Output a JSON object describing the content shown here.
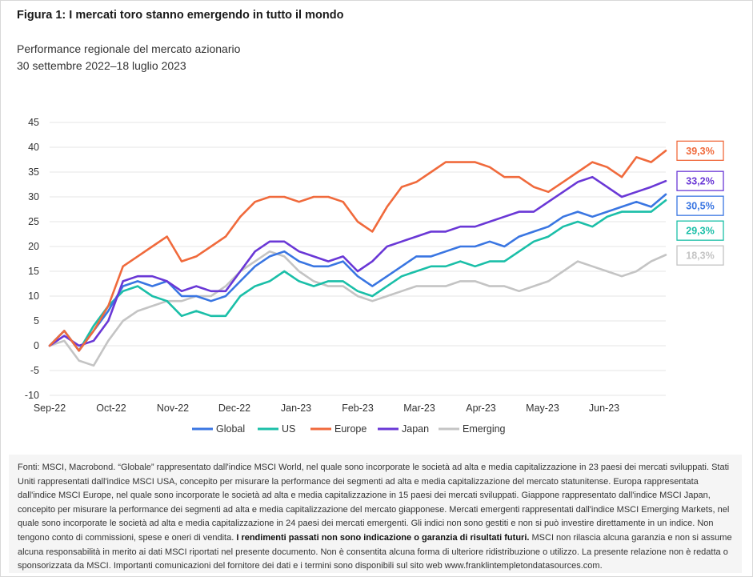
{
  "figure": {
    "title": "Figura 1: I mercati toro stanno emergendo in tutto il mondo",
    "subtitle_line1": "Performance regionale del mercato azionario",
    "subtitle_line2": "30 settembre 2022–18 luglio 2023"
  },
  "chart_data": {
    "type": "line",
    "title": "",
    "xlabel": "",
    "ylabel": "",
    "ylim": [
      -10,
      45
    ],
    "yticks": [
      45,
      40,
      35,
      30,
      25,
      20,
      15,
      10,
      5,
      0,
      -5,
      -10
    ],
    "x_tick_labels": [
      "Sep-22",
      "Oct-22",
      "Nov-22",
      "Dec-22",
      "Jan-23",
      "Feb-23",
      "Mar-23",
      "Apr-23",
      "May-23",
      "Jun-23"
    ],
    "grid": "horizontal",
    "legend_position": "bottom",
    "x": [
      "2022-09-30",
      "2022-10-06",
      "2022-10-13",
      "2022-10-20",
      "2022-10-27",
      "2022-11-03",
      "2022-11-10",
      "2022-11-17",
      "2022-11-24",
      "2022-12-01",
      "2022-12-08",
      "2022-12-15",
      "2022-12-22",
      "2022-12-29",
      "2023-01-05",
      "2023-01-12",
      "2023-01-19",
      "2023-01-26",
      "2023-02-02",
      "2023-02-09",
      "2023-02-16",
      "2023-02-23",
      "2023-03-02",
      "2023-03-09",
      "2023-03-16",
      "2023-03-23",
      "2023-03-30",
      "2023-04-06",
      "2023-04-13",
      "2023-04-20",
      "2023-04-27",
      "2023-05-04",
      "2023-05-11",
      "2023-05-18",
      "2023-05-25",
      "2023-06-01",
      "2023-06-08",
      "2023-06-15",
      "2023-06-22",
      "2023-06-29",
      "2023-07-06",
      "2023-07-13",
      "2023-07-18"
    ],
    "series": [
      {
        "name": "Global",
        "color": "#3a76e2",
        "end_label": "30,5%",
        "values": [
          0,
          3,
          -1,
          3,
          7,
          12,
          13,
          12,
          13,
          10,
          10,
          9,
          10,
          13,
          16,
          18,
          19,
          17,
          16,
          16,
          17,
          14,
          12,
          14,
          16,
          18,
          18,
          19,
          20,
          20,
          21,
          20,
          22,
          23,
          24,
          26,
          27,
          26,
          27,
          28,
          29,
          28,
          30.5
        ]
      },
      {
        "name": "US",
        "color": "#1bbfa8",
        "end_label": "29,3%",
        "values": [
          0,
          3,
          -1,
          4,
          8,
          11,
          12,
          10,
          9,
          6,
          7,
          6,
          6,
          10,
          12,
          13,
          15,
          13,
          12,
          13,
          13,
          11,
          10,
          12,
          14,
          15,
          16,
          16,
          17,
          16,
          17,
          17,
          19,
          21,
          22,
          24,
          25,
          24,
          26,
          27,
          27,
          27,
          29.3
        ]
      },
      {
        "name": "Europe",
        "color": "#f06a3c",
        "end_label": "39,3%",
        "values": [
          0,
          3,
          -1,
          3,
          8,
          16,
          18,
          20,
          22,
          17,
          18,
          20,
          22,
          26,
          29,
          30,
          30,
          29,
          30,
          30,
          29,
          25,
          23,
          28,
          32,
          33,
          35,
          37,
          37,
          37,
          36,
          34,
          34,
          32,
          31,
          33,
          35,
          37,
          36,
          34,
          38,
          37,
          39.3
        ]
      },
      {
        "name": "Japan",
        "color": "#6a38d6",
        "end_label": "33,2%",
        "values": [
          0,
          2,
          0,
          1,
          5,
          13,
          14,
          14,
          13,
          11,
          12,
          11,
          11,
          15,
          19,
          21,
          21,
          19,
          18,
          17,
          18,
          15,
          17,
          20,
          21,
          22,
          23,
          23,
          24,
          24,
          25,
          26,
          27,
          27,
          29,
          31,
          33,
          34,
          32,
          30,
          31,
          32,
          33.2
        ]
      },
      {
        "name": "Emerging",
        "color": "#c4c4c4",
        "end_label": "18,3%",
        "values": [
          0,
          1,
          -3,
          -4,
          1,
          5,
          7,
          8,
          9,
          9,
          10,
          10,
          12,
          15,
          17,
          19,
          18,
          15,
          13,
          12,
          12,
          10,
          9,
          10,
          11,
          12,
          12,
          12,
          13,
          13,
          12,
          12,
          11,
          12,
          13,
          15,
          17,
          16,
          15,
          14,
          15,
          17,
          18.3
        ]
      }
    ]
  },
  "footnote": {
    "part1": "Fonti: MSCI, Macrobond. “Globale” rappresentato dall'indice MSCI World, nel quale sono incorporate le società ad alta e media capitalizzazione in 23 paesi dei mercati sviluppati. Stati Uniti rappresentati dall'indice MSCI USA, concepito per misurare la performance dei segmenti ad alta e media capitalizzazione del mercato statunitense. Europa rappresentata dall'indice MSCI Europe, nel quale sono incorporate le società ad alta e media capitalizzazione in 15 paesi dei mercati sviluppati. Giappone rappresentato dall'indice MSCI Japan, concepito per misurare la performance dei segmenti ad alta e media capitalizzazione del mercato giapponese. Mercati emergenti rappresentati dall'indice MSCI Emerging Markets, nel quale sono incorporate le società ad alta e media capitalizzazione in 24 paesi dei mercati emergenti. Gli indici non sono gestiti e non si può investire direttamente in un indice. Non tengono conto di commissioni, spese e oneri di vendita. ",
    "bold": "I rendimenti passati non sono indicazione o garanzia di risultati futuri.",
    "part2": " MSCI non rilascia alcuna garanzia e non si assume alcuna responsabilità in merito ai dati MSCI riportati nel presente documento. Non è consentita alcuna forma di ulteriore ridistribuzione o utilizzo. La presente relazione non è redatta o sponsorizzata da MSCI. Importanti comunicazioni del fornitore dei dati e i termini sono disponibili sul sito web www.franklintempletondatasources.com."
  }
}
